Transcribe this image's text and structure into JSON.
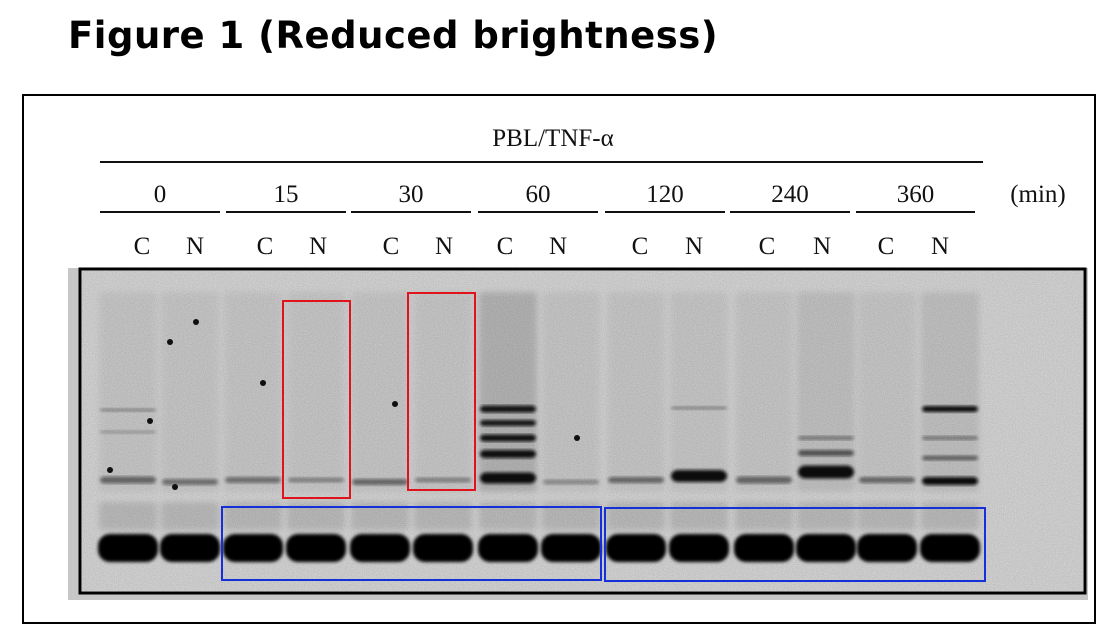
{
  "figure": {
    "title": "Figure 1 (Reduced brightness)",
    "treatment_label": "PBL/TNF-α",
    "unit_label": "(min)",
    "timepoints": [
      "0",
      "15",
      "30",
      "60",
      "120",
      "240",
      "360"
    ],
    "fractions": [
      "C",
      "N"
    ],
    "highlight_colors": {
      "red": "#e0121b",
      "blue": "#1530d8"
    }
  }
}
